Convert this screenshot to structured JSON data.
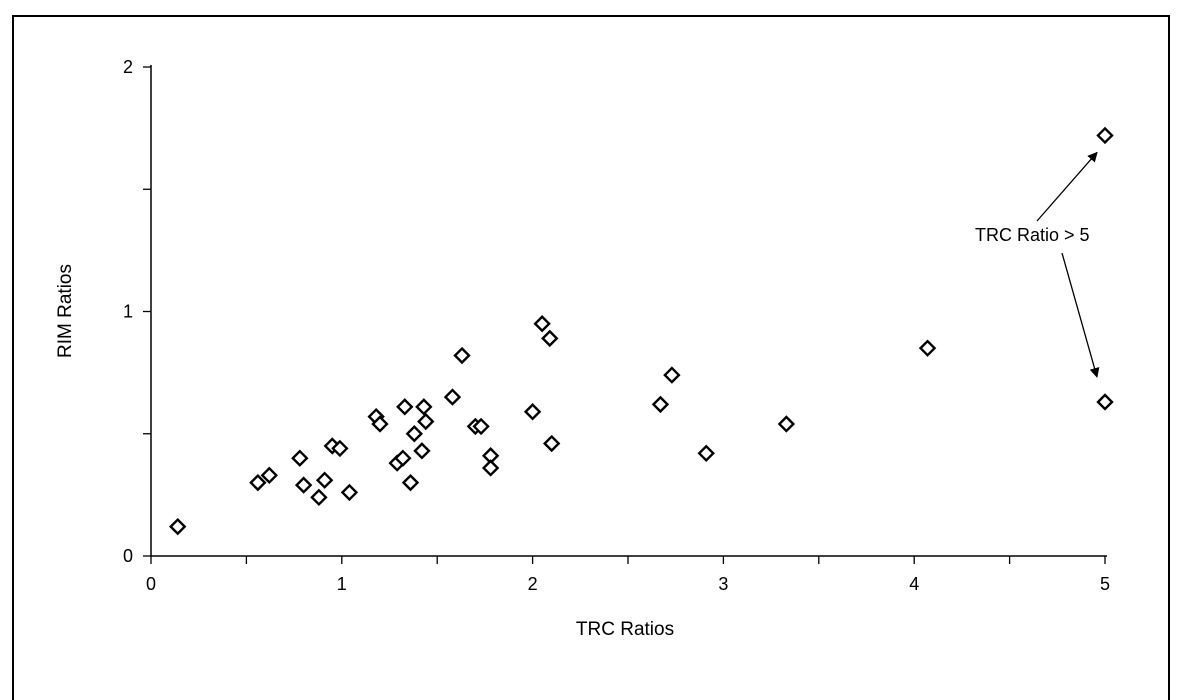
{
  "chart_data": {
    "type": "scatter",
    "title": "",
    "xlabel": "TRC Ratios",
    "ylabel": "RIM Ratios",
    "xlim": [
      0,
      5
    ],
    "ylim": [
      0,
      2
    ],
    "x_ticks": [
      "0",
      "1",
      "2",
      "3",
      "4",
      "5"
    ],
    "y_ticks": [
      "0",
      "1",
      "2"
    ],
    "grid": false,
    "marker": "open diamond",
    "series": [
      {
        "points": [
          {
            "x": 0.14,
            "y": 0.12
          },
          {
            "x": 0.56,
            "y": 0.3
          },
          {
            "x": 0.62,
            "y": 0.33
          },
          {
            "x": 0.78,
            "y": 0.4
          },
          {
            "x": 0.8,
            "y": 0.29
          },
          {
            "x": 0.88,
            "y": 0.24
          },
          {
            "x": 0.91,
            "y": 0.31
          },
          {
            "x": 0.95,
            "y": 0.45
          },
          {
            "x": 0.99,
            "y": 0.44
          },
          {
            "x": 1.04,
            "y": 0.26
          },
          {
            "x": 1.18,
            "y": 0.57
          },
          {
            "x": 1.2,
            "y": 0.54
          },
          {
            "x": 1.29,
            "y": 0.38
          },
          {
            "x": 1.32,
            "y": 0.4
          },
          {
            "x": 1.33,
            "y": 0.61
          },
          {
            "x": 1.36,
            "y": 0.3
          },
          {
            "x": 1.38,
            "y": 0.5
          },
          {
            "x": 1.42,
            "y": 0.43
          },
          {
            "x": 1.43,
            "y": 0.61
          },
          {
            "x": 1.44,
            "y": 0.55
          },
          {
            "x": 1.58,
            "y": 0.65
          },
          {
            "x": 1.63,
            "y": 0.82
          },
          {
            "x": 1.7,
            "y": 0.53
          },
          {
            "x": 1.73,
            "y": 0.53
          },
          {
            "x": 1.78,
            "y": 0.41
          },
          {
            "x": 1.78,
            "y": 0.36
          },
          {
            "x": 2.0,
            "y": 0.59
          },
          {
            "x": 2.05,
            "y": 0.95
          },
          {
            "x": 2.09,
            "y": 0.89
          },
          {
            "x": 2.1,
            "y": 0.46
          },
          {
            "x": 2.67,
            "y": 0.62
          },
          {
            "x": 2.73,
            "y": 0.74
          },
          {
            "x": 2.91,
            "y": 0.42
          },
          {
            "x": 3.33,
            "y": 0.54
          },
          {
            "x": 4.07,
            "y": 0.85
          },
          {
            "x": 5.0,
            "y": 0.63
          },
          {
            "x": 5.0,
            "y": 1.72
          }
        ]
      }
    ],
    "annotation": {
      "text": "TRC Ratio > 5",
      "points_to": [
        {
          "x": 5.0,
          "y": 1.72
        },
        {
          "x": 5.0,
          "y": 0.63
        }
      ]
    }
  }
}
